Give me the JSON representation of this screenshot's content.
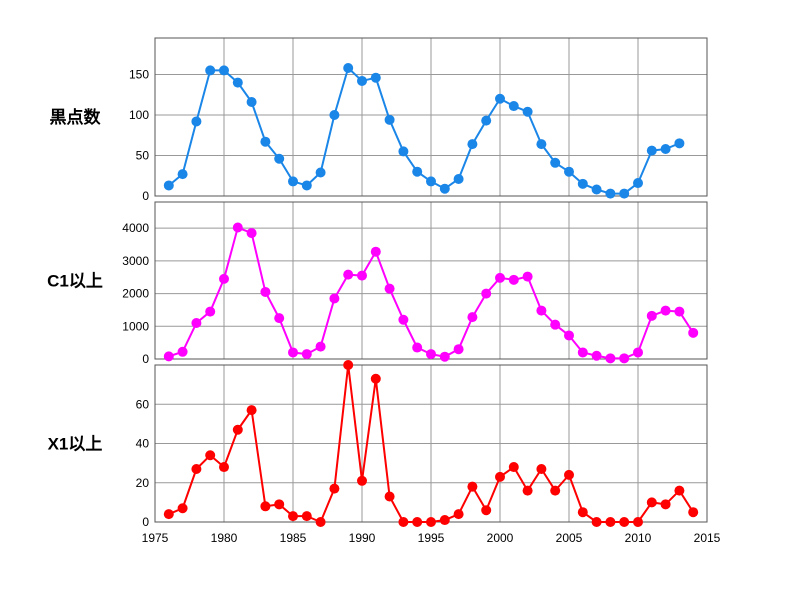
{
  "chart_data": [
    {
      "type": "line",
      "ylabel": "黒点数",
      "color": "#1a86e8",
      "ylim": [
        0,
        195
      ],
      "yticks": [
        0,
        50,
        100,
        150
      ],
      "xlim": [
        1975,
        2015
      ],
      "x": [
        1976,
        1977,
        1978,
        1979,
        1980,
        1981,
        1982,
        1983,
        1984,
        1985,
        1986,
        1987,
        1988,
        1989,
        1990,
        1991,
        1992,
        1993,
        1994,
        1995,
        1996,
        1997,
        1998,
        1999,
        2000,
        2001,
        2002,
        2003,
        2004,
        2005,
        2006,
        2007,
        2008,
        2009,
        2010,
        2011,
        2012,
        2013
      ],
      "values": [
        13,
        27,
        92,
        155,
        155,
        140,
        116,
        67,
        46,
        18,
        13,
        29,
        100,
        158,
        142,
        146,
        94,
        55,
        30,
        18,
        9,
        21,
        64,
        93,
        120,
        111,
        104,
        64,
        41,
        30,
        15,
        8,
        3,
        3,
        16,
        56,
        58,
        65
      ]
    },
    {
      "type": "line",
      "ylabel": "C1以上",
      "color": "#ff00ff",
      "ylim": [
        0,
        4800
      ],
      "yticks": [
        0,
        1000,
        2000,
        3000,
        4000
      ],
      "xlim": [
        1975,
        2015
      ],
      "x": [
        1976,
        1977,
        1978,
        1979,
        1980,
        1981,
        1982,
        1983,
        1984,
        1985,
        1986,
        1987,
        1988,
        1989,
        1990,
        1991,
        1992,
        1993,
        1994,
        1995,
        1996,
        1997,
        1998,
        1999,
        2000,
        2001,
        2002,
        2003,
        2004,
        2005,
        2006,
        2007,
        2008,
        2009,
        2010,
        2011,
        2012,
        2013,
        2014
      ],
      "values": [
        80,
        220,
        1100,
        1450,
        2450,
        4020,
        3850,
        2050,
        1250,
        200,
        150,
        380,
        1850,
        2580,
        2550,
        3280,
        2150,
        1200,
        350,
        150,
        70,
        300,
        1280,
        2000,
        2480,
        2420,
        2520,
        1480,
        1050,
        720,
        200,
        100,
        20,
        20,
        200,
        1320,
        1480,
        1450,
        800
      ]
    },
    {
      "type": "line",
      "ylabel": "X1以上",
      "color": "#ff0000",
      "ylim": [
        0,
        80
      ],
      "yticks": [
        0,
        20,
        40,
        60
      ],
      "xlim": [
        1975,
        2015
      ],
      "xticks": [
        1975,
        1980,
        1985,
        1990,
        1995,
        2000,
        2005,
        2010,
        2015
      ],
      "x": [
        1976,
        1977,
        1978,
        1979,
        1980,
        1981,
        1982,
        1983,
        1984,
        1985,
        1986,
        1987,
        1988,
        1989,
        1990,
        1991,
        1992,
        1993,
        1994,
        1995,
        1996,
        1997,
        1998,
        1999,
        2000,
        2001,
        2002,
        2003,
        2004,
        2005,
        2006,
        2007,
        2008,
        2009,
        2010,
        2011,
        2012,
        2013,
        2014
      ],
      "values": [
        4,
        7,
        27,
        34,
        28,
        47,
        57,
        8,
        9,
        3,
        3,
        0,
        17,
        80,
        21,
        73,
        13,
        0,
        0,
        0,
        1,
        4,
        18,
        6,
        23,
        28,
        16,
        27,
        16,
        24,
        5,
        0,
        0,
        0,
        0,
        10,
        9,
        16,
        5
      ]
    }
  ]
}
